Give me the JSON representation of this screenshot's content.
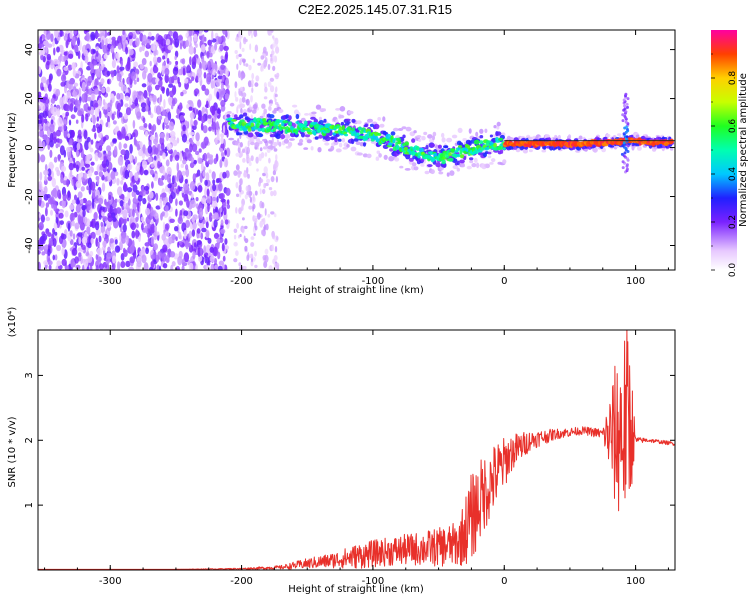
{
  "title": "C2E2.2025.145.07.31.R15",
  "chart_data": [
    {
      "type": "heatmap",
      "xlabel": "Height of straight line (km)",
      "ylabel": "Frequency (Hz)",
      "xlim": [
        -355,
        130
      ],
      "ylim": [
        -50,
        48
      ],
      "xticks": [
        -300,
        -200,
        -100,
        0,
        100
      ],
      "yticks": [
        -40,
        -20,
        0,
        20,
        40
      ],
      "colorbar": {
        "label": "Normalized spectral amplitude",
        "range": [
          0,
          1
        ],
        "ticks": [
          0.0,
          0.2,
          0.4,
          0.6,
          0.8
        ]
      },
      "features": {
        "noise_region_x": [
          -355,
          -210
        ],
        "sparse_noise_x": [
          -205,
          -172
        ],
        "ridge": {
          "x": [
            -210,
            -180,
            -150,
            -120,
            -100,
            -80,
            -60,
            -45,
            -30,
            -15,
            0,
            20,
            40,
            60,
            80,
            95,
            110,
            128
          ],
          "frequency": [
            10,
            9,
            8,
            7,
            5,
            1,
            -3,
            -4,
            -1,
            1,
            1.5,
            1.5,
            1.5,
            1.5,
            2,
            3,
            2,
            2
          ]
        },
        "spike_x": 92
      }
    },
    {
      "type": "line",
      "xlabel": "Height of straight line (km)",
      "ylabel": "SNR (10 * v/v)",
      "y_multiplier": "(x10⁴)",
      "xlim": [
        -355,
        130
      ],
      "ylim": [
        0,
        3.7
      ],
      "xticks": [
        -300,
        -200,
        -100,
        0,
        100
      ],
      "yticks": [
        1,
        2,
        3
      ],
      "color": "#e8302a",
      "series": [
        {
          "x": [
            -355,
            -250,
            -200,
            -170,
            -150,
            -130,
            -110,
            -90,
            -70,
            -50,
            -35,
            -25,
            -15,
            -5,
            5,
            20,
            40,
            60,
            75,
            85,
            90,
            95,
            100,
            110,
            128
          ],
          "y": [
            0.01,
            0.01,
            0.02,
            0.04,
            0.1,
            0.15,
            0.22,
            0.28,
            0.32,
            0.35,
            0.4,
            0.8,
            1.2,
            1.5,
            1.8,
            2.0,
            2.1,
            2.15,
            2.1,
            2.05,
            2.2,
            2.3,
            2.0,
            2.0,
            1.95
          ],
          "noise_amplitude": [
            0,
            0,
            0.01,
            0.03,
            0.08,
            0.12,
            0.2,
            0.22,
            0.25,
            0.3,
            0.35,
            0.7,
            0.6,
            0.5,
            0.3,
            0.15,
            0.08,
            0.06,
            0.08,
            1.2,
            1.5,
            1.5,
            0.05,
            0.03,
            0.03
          ]
        }
      ]
    }
  ]
}
